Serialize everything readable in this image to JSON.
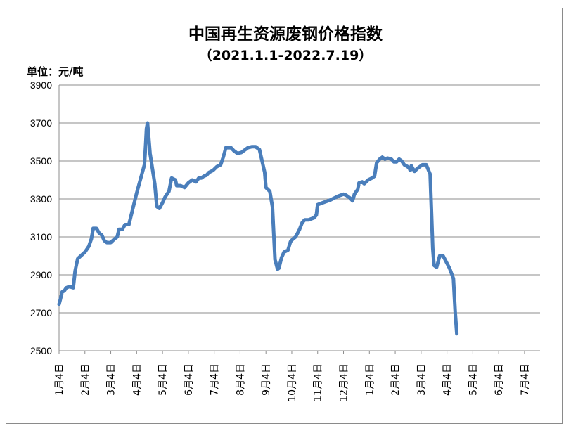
{
  "chart_data": {
    "type": "line",
    "title": "中国再生资源废钢价格指数",
    "subtitle": "（2021.1.1-2022.7.19）",
    "unit_label": "单位：元/吨",
    "xlabel": "",
    "ylabel": "",
    "ylim": [
      2500,
      3900
    ],
    "y_ticks": [
      2500,
      2700,
      2900,
      3100,
      3300,
      3500,
      3700,
      3900
    ],
    "x_ticks": [
      "1月4日",
      "2月4日",
      "3月4日",
      "4月4日",
      "5月4日",
      "6月4日",
      "7月4日",
      "8月4日",
      "9月4日",
      "10月4日",
      "11月4日",
      "12月4日",
      "1月4日",
      "2月4日",
      "3月4日",
      "4月4日",
      "5月4日",
      "6月4日",
      "7月4日"
    ],
    "grid": true,
    "line_color": "#4a7ebb",
    "series": [
      {
        "values": [
          [
            0,
            2745
          ],
          [
            0.05,
            2770
          ],
          [
            0.12,
            2810
          ],
          [
            0.2,
            2815
          ],
          [
            0.28,
            2832
          ],
          [
            0.4,
            2838
          ],
          [
            0.55,
            2832
          ],
          [
            0.62,
            2920
          ],
          [
            0.72,
            2985
          ],
          [
            1,
            3020
          ],
          [
            1.15,
            3050
          ],
          [
            1.25,
            3090
          ],
          [
            1.32,
            3145
          ],
          [
            1.45,
            3145
          ],
          [
            1.55,
            3120
          ],
          [
            1.65,
            3110
          ],
          [
            1.75,
            3080
          ],
          [
            1.85,
            3070
          ],
          [
            2,
            3070
          ],
          [
            2.15,
            3090
          ],
          [
            2.25,
            3100
          ],
          [
            2.32,
            3140
          ],
          [
            2.45,
            3140
          ],
          [
            2.55,
            3165
          ],
          [
            2.7,
            3165
          ],
          [
            3,
            3330
          ],
          [
            3.3,
            3480
          ],
          [
            3.35,
            3590
          ],
          [
            3.38,
            3670
          ],
          [
            3.42,
            3700
          ],
          [
            3.46,
            3640
          ],
          [
            3.52,
            3540
          ],
          [
            3.7,
            3380
          ],
          [
            3.78,
            3260
          ],
          [
            3.88,
            3250
          ],
          [
            4,
            3280
          ],
          [
            4.1,
            3310
          ],
          [
            4.25,
            3340
          ],
          [
            4.35,
            3410
          ],
          [
            4.5,
            3400
          ],
          [
            4.55,
            3370
          ],
          [
            4.7,
            3370
          ],
          [
            4.85,
            3360
          ],
          [
            5,
            3385
          ],
          [
            5.15,
            3400
          ],
          [
            5.3,
            3390
          ],
          [
            5.4,
            3410
          ],
          [
            5.5,
            3410
          ],
          [
            5.6,
            3420
          ],
          [
            5.7,
            3425
          ],
          [
            5.8,
            3440
          ],
          [
            5.95,
            3450
          ],
          [
            6.1,
            3470
          ],
          [
            6.25,
            3480
          ],
          [
            6.35,
            3520
          ],
          [
            6.45,
            3570
          ],
          [
            6.65,
            3570
          ],
          [
            6.75,
            3555
          ],
          [
            6.9,
            3540
          ],
          [
            7.05,
            3545
          ],
          [
            7.3,
            3570
          ],
          [
            7.45,
            3575
          ],
          [
            7.6,
            3575
          ],
          [
            7.75,
            3560
          ],
          [
            7.95,
            3440
          ],
          [
            8,
            3360
          ],
          [
            8.15,
            3340
          ],
          [
            8.25,
            3260
          ],
          [
            8.35,
            2980
          ],
          [
            8.45,
            2930
          ],
          [
            8.5,
            2935
          ],
          [
            8.6,
            2990
          ],
          [
            8.7,
            3020
          ],
          [
            8.85,
            3030
          ],
          [
            8.95,
            3075
          ],
          [
            9.05,
            3090
          ],
          [
            9.15,
            3100
          ],
          [
            9.3,
            3140
          ],
          [
            9.4,
            3175
          ],
          [
            9.5,
            3190
          ],
          [
            9.65,
            3190
          ],
          [
            9.85,
            3200
          ],
          [
            9.95,
            3215
          ],
          [
            10,
            3270
          ],
          [
            10.2,
            3280
          ],
          [
            10.5,
            3295
          ],
          [
            10.8,
            3315
          ],
          [
            11,
            3325
          ],
          [
            11.1,
            3320
          ],
          [
            11.25,
            3305
          ],
          [
            11.35,
            3290
          ],
          [
            11.42,
            3325
          ],
          [
            11.55,
            3350
          ],
          [
            11.6,
            3385
          ],
          [
            11.72,
            3390
          ],
          [
            11.8,
            3380
          ],
          [
            11.95,
            3400
          ],
          [
            12.1,
            3410
          ],
          [
            12.2,
            3420
          ],
          [
            12.28,
            3490
          ],
          [
            12.4,
            3510
          ],
          [
            12.5,
            3520
          ],
          [
            12.6,
            3510
          ],
          [
            12.7,
            3515
          ],
          [
            12.85,
            3510
          ],
          [
            12.95,
            3495
          ],
          [
            13.05,
            3495
          ],
          [
            13.15,
            3510
          ],
          [
            13.25,
            3500
          ],
          [
            13.35,
            3480
          ],
          [
            13.48,
            3470
          ],
          [
            13.55,
            3460
          ],
          [
            13.58,
            3450
          ],
          [
            13.62,
            3475
          ],
          [
            13.68,
            3460
          ],
          [
            13.75,
            3445
          ],
          [
            13.85,
            3460
          ],
          [
            13.95,
            3470
          ],
          [
            14.05,
            3480
          ],
          [
            14.2,
            3480
          ],
          [
            14.35,
            3430
          ],
          [
            14.45,
            3040
          ],
          [
            14.5,
            2950
          ],
          [
            14.6,
            2940
          ],
          [
            14.72,
            3000
          ],
          [
            14.85,
            3000
          ],
          [
            15.1,
            2935
          ],
          [
            15.25,
            2880
          ],
          [
            15.32,
            2700
          ],
          [
            15.38,
            2590
          ]
        ]
      }
    ]
  }
}
